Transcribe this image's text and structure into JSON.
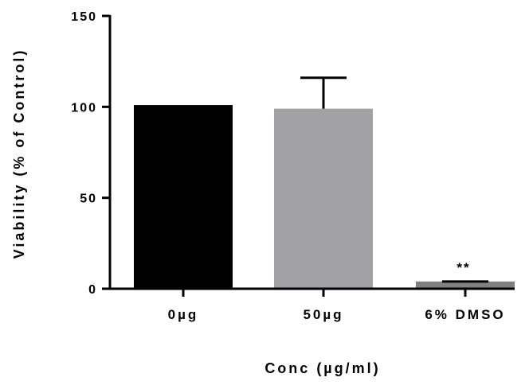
{
  "chart_data": {
    "type": "bar",
    "categories": [
      "0µg",
      "50µg",
      "6% DMSO"
    ],
    "values": [
      101,
      99,
      4
    ],
    "error_upper": [
      101,
      116,
      4
    ],
    "colors": [
      "#000000",
      "#a2a2a6",
      "#808080"
    ],
    "ylabel": "Viability (% of Control)",
    "xlabel": "Conc (µg/ml)",
    "ylim": [
      0,
      150
    ],
    "yticks": [
      0,
      50,
      100,
      150
    ],
    "annotations": [
      {
        "category": "6% DMSO",
        "text": "**"
      }
    ],
    "grid": false
  }
}
